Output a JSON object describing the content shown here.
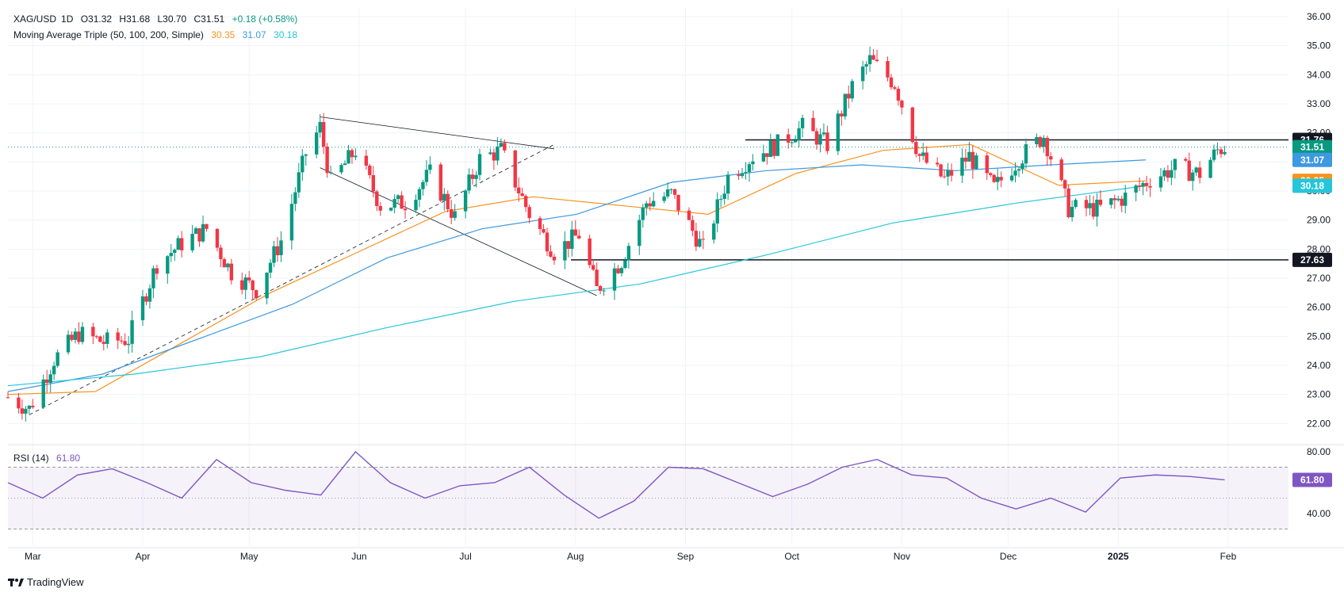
{
  "header": {
    "symbol": "XAG/USD",
    "interval": "1D",
    "open": "O31.32",
    "high": "H31.68",
    "low": "L30.70",
    "close": "C31.51",
    "change": "+0.18 (+0.58%)",
    "ma_label": "Moving Average Triple (50, 100, 200, Simple)",
    "ma50": "30.35",
    "ma100": "31.07",
    "ma200": "30.18"
  },
  "rsi": {
    "label": "RSI (14)",
    "value": "61.80",
    "levels": [
      70,
      50,
      30
    ],
    "ticks": [
      "80.00",
      "40.00"
    ]
  },
  "brand": "TradingView",
  "colors": {
    "up": "#089981",
    "down": "#f23645",
    "ma50": "#f7931e",
    "ma100": "#3d99e0",
    "ma200": "#26c6da",
    "rsi": "#7e57c2",
    "price_line": "#089981"
  },
  "chart_data": {
    "type": "candlestick",
    "title": "XAG/USD, 1D",
    "x_labels": [
      "Mar",
      "Apr",
      "May",
      "Jun",
      "Jul",
      "Aug",
      "Sep",
      "Oct",
      "Nov",
      "Dec",
      "2025",
      "Feb"
    ],
    "y_ticks": [
      22,
      23,
      24,
      25,
      26,
      27,
      28,
      29,
      30,
      31,
      32,
      33,
      34,
      35,
      36
    ],
    "ylim": [
      21.3,
      36.3
    ],
    "price_labels": [
      {
        "label": "31.76",
        "value": 31.76,
        "color": "#131722"
      },
      {
        "label": "31.51",
        "value": 31.51,
        "color": "#089981"
      },
      {
        "label": "31.07",
        "value": 31.07,
        "color": "#3d99e0"
      },
      {
        "label": "30.35",
        "value": 30.35,
        "color": "#f7931e"
      },
      {
        "label": "30.18",
        "value": 30.18,
        "color": "#26c6da"
      },
      {
        "label": "27.63",
        "value": 27.63,
        "color": "#131722"
      }
    ],
    "horizontal_levels": [
      31.76,
      27.63
    ],
    "close_path": [
      [
        "2024-02-23",
        22.9
      ],
      [
        "2024-02-29",
        22.5
      ],
      [
        "2024-03-07",
        24.2
      ],
      [
        "2024-03-14",
        25.1
      ],
      [
        "2024-03-21",
        24.8
      ],
      [
        "2024-03-28",
        24.9
      ],
      [
        "2024-04-05",
        27.5
      ],
      [
        "2024-04-12",
        28.2
      ],
      [
        "2024-04-19",
        28.7
      ],
      [
        "2024-04-26",
        27.2
      ],
      [
        "2024-05-03",
        26.6
      ],
      [
        "2024-05-10",
        28.3
      ],
      [
        "2024-05-17",
        31.3
      ],
      [
        "2024-05-21",
        32.2
      ],
      [
        "2024-05-24",
        30.3
      ],
      [
        "2024-05-31",
        31.4
      ],
      [
        "2024-06-07",
        29.5
      ],
      [
        "2024-06-14",
        29.6
      ],
      [
        "2024-06-21",
        30.6
      ],
      [
        "2024-06-28",
        29.1
      ],
      [
        "2024-07-05",
        31.1
      ],
      [
        "2024-07-11",
        31.4
      ],
      [
        "2024-07-19",
        29.2
      ],
      [
        "2024-07-26",
        27.9
      ],
      [
        "2024-08-02",
        28.5
      ],
      [
        "2024-08-07",
        26.6
      ],
      [
        "2024-08-14",
        27.6
      ],
      [
        "2024-08-21",
        29.6
      ],
      [
        "2024-08-28",
        29.9
      ],
      [
        "2024-09-06",
        28.0
      ],
      [
        "2024-09-13",
        30.5
      ],
      [
        "2024-09-20",
        31.2
      ],
      [
        "2024-09-27",
        31.6
      ],
      [
        "2024-10-04",
        32.2
      ],
      [
        "2024-10-11",
        31.6
      ],
      [
        "2024-10-18",
        33.6
      ],
      [
        "2024-10-23",
        34.5
      ],
      [
        "2024-10-30",
        33.7
      ],
      [
        "2024-11-06",
        31.2
      ],
      [
        "2024-11-13",
        30.4
      ],
      [
        "2024-11-20",
        31.2
      ],
      [
        "2024-11-27",
        30.1
      ],
      [
        "2024-12-04",
        31.1
      ],
      [
        "2024-12-11",
        31.9
      ],
      [
        "2024-12-18",
        29.4
      ],
      [
        "2024-12-27",
        29.4
      ],
      [
        "2025-01-03",
        29.8
      ],
      [
        "2025-01-10",
        30.4
      ],
      [
        "2025-01-17",
        30.8
      ],
      [
        "2025-01-24",
        30.6
      ],
      [
        "2025-01-29",
        31.4
      ],
      [
        "2025-01-31",
        31.51
      ]
    ],
    "series": [
      {
        "name": "MA 50",
        "values": [
          23.0,
          23.1,
          24.8,
          26.5,
          27.9,
          29.3,
          29.8,
          29.5,
          29.2,
          30.6,
          31.4,
          31.6,
          30.2,
          30.35
        ]
      },
      {
        "name": "MA 100",
        "values": [
          23.1,
          23.7,
          24.9,
          26.1,
          27.7,
          28.7,
          29.2,
          30.3,
          30.7,
          30.9,
          30.7,
          30.9,
          31.07
        ]
      },
      {
        "name": "MA 200",
        "values": [
          23.3,
          23.7,
          24.3,
          25.3,
          26.2,
          26.8,
          27.8,
          28.9,
          29.6,
          30.18
        ]
      }
    ],
    "rsi_values": [
      60,
      50,
      65,
      69,
      60,
      50,
      75,
      60,
      55,
      52,
      80,
      60,
      50,
      58,
      60,
      70,
      52,
      37,
      48,
      70,
      69,
      60,
      51,
      59,
      70,
      75,
      65,
      63,
      50,
      43,
      50,
      41,
      63,
      65,
      64,
      61.8
    ]
  }
}
